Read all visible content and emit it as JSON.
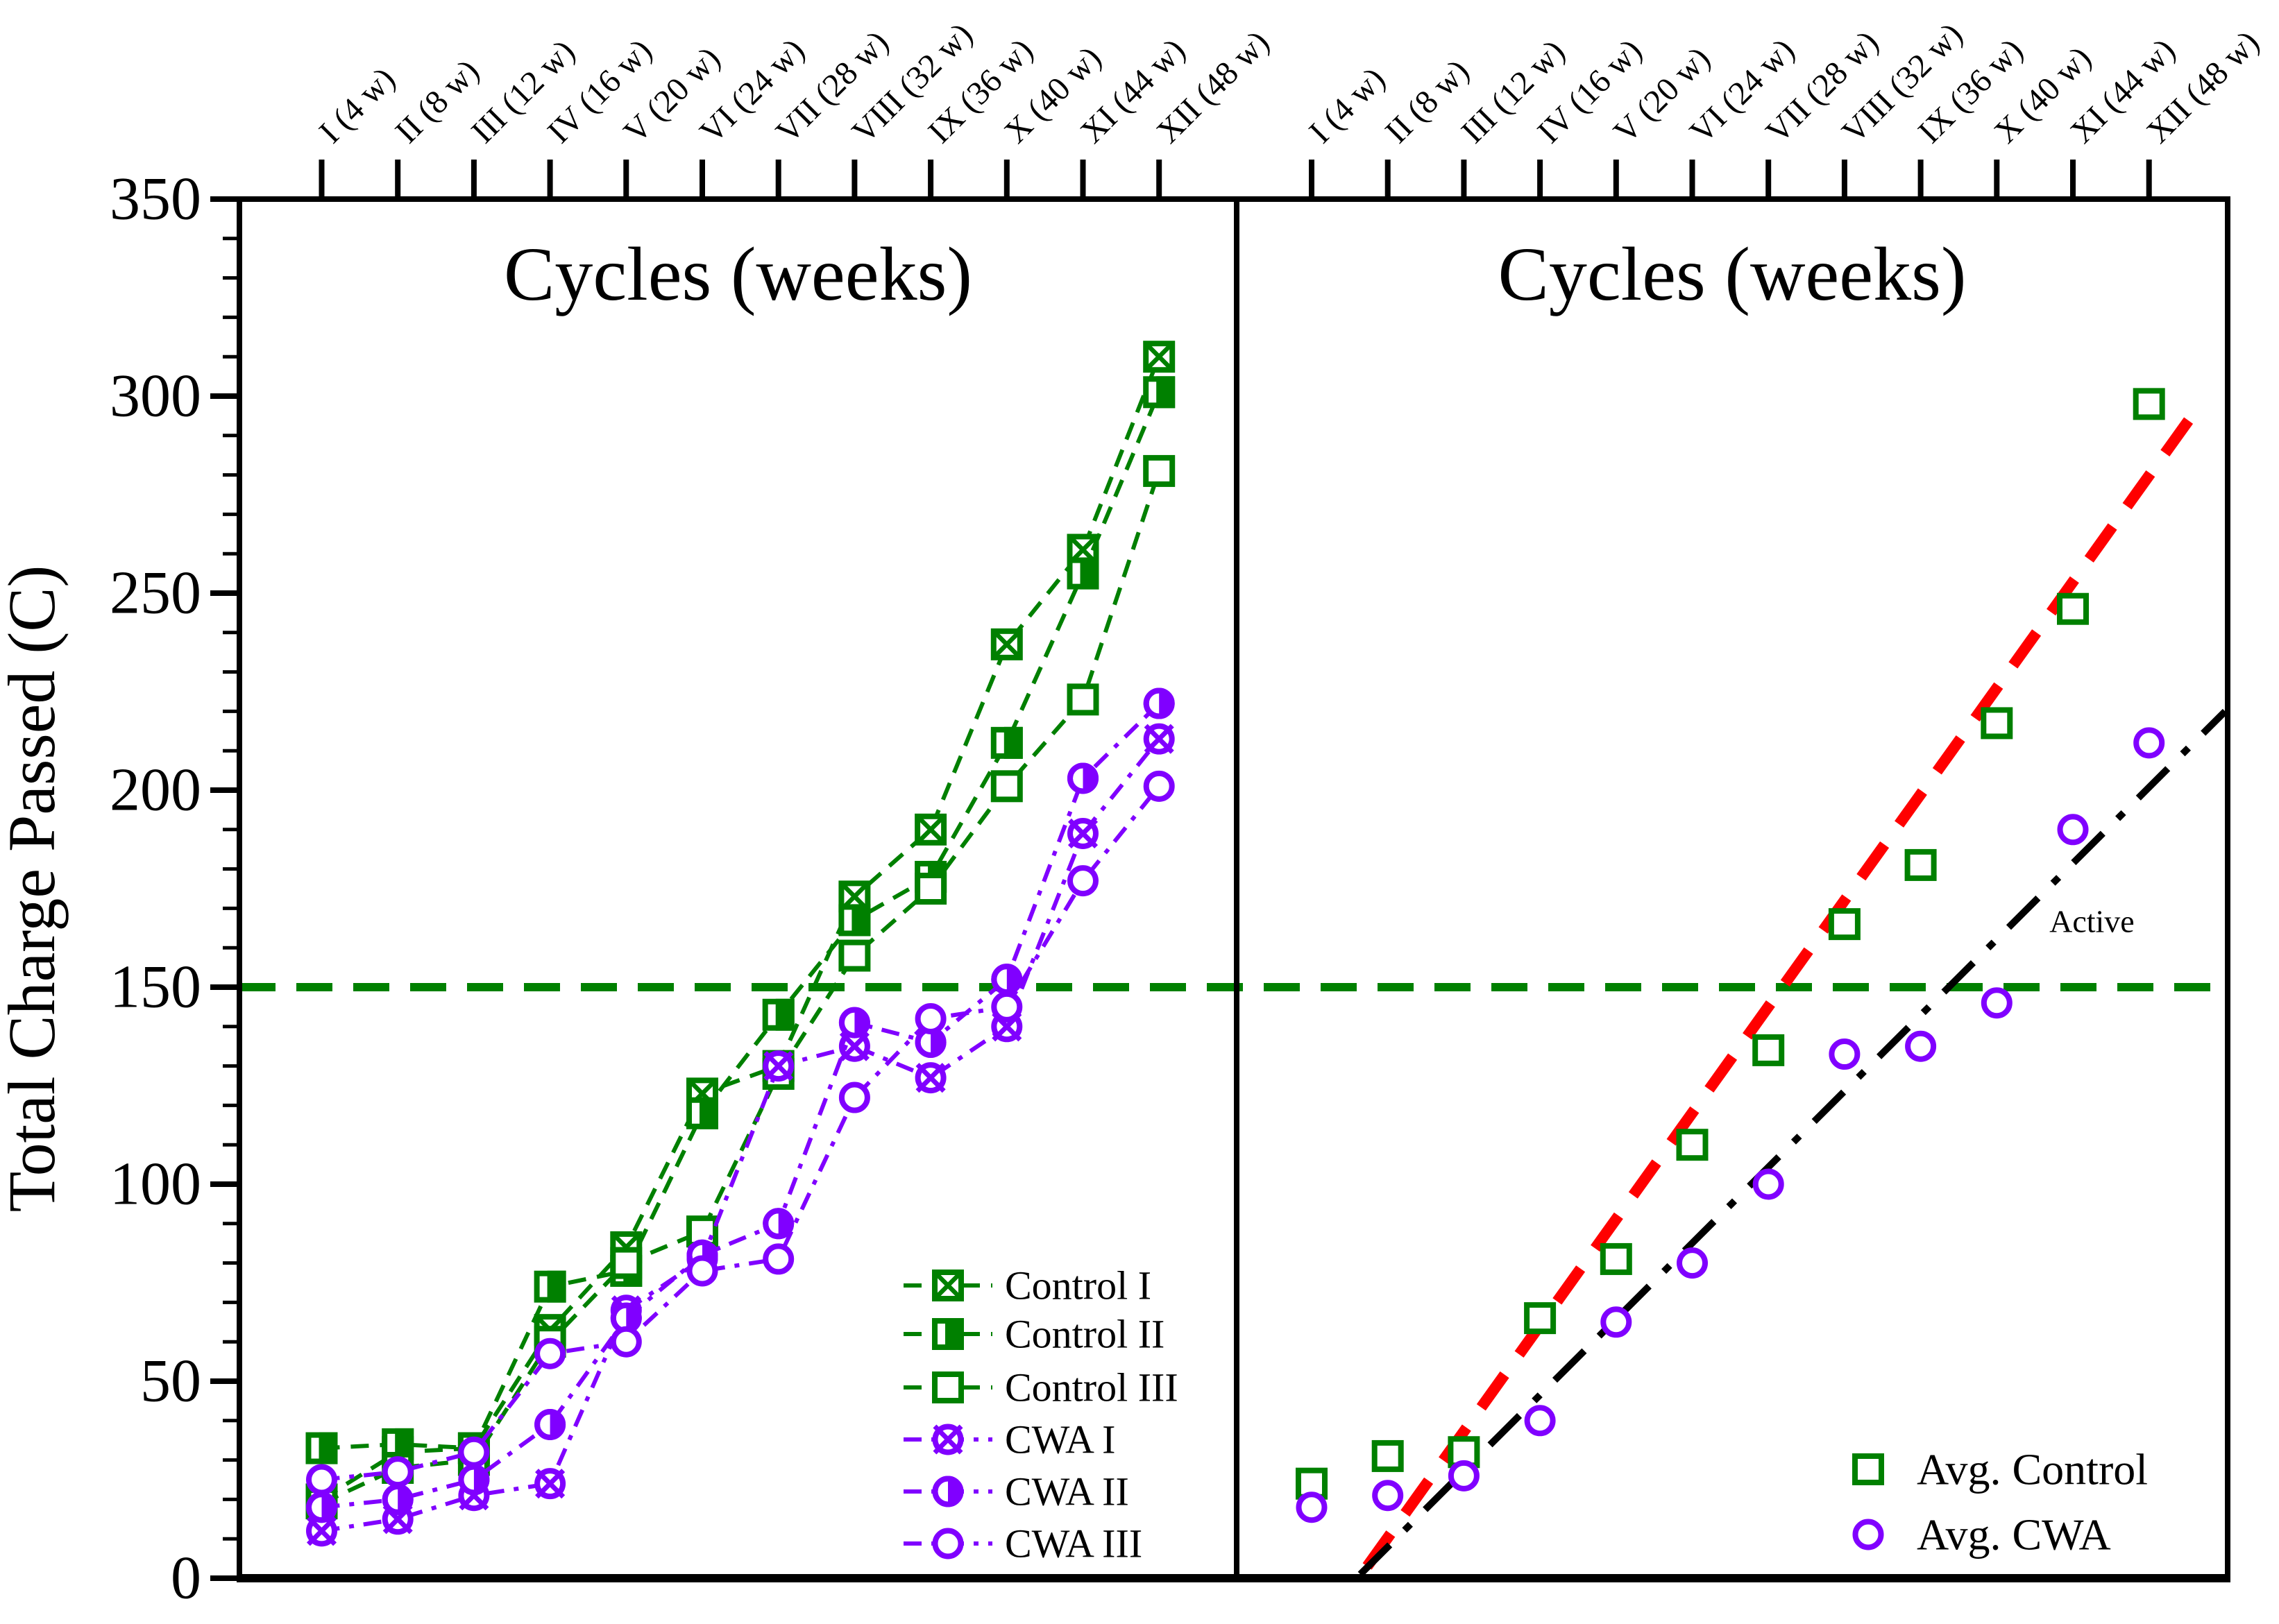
{
  "figure": {
    "type": "dual-panel scatter/line chart",
    "background": "#ffffff",
    "ylabel": "Total Charge Passed (C)"
  },
  "axes": {
    "y": {
      "label": "Total Charge Passed (C)",
      "min": 0,
      "max": 350,
      "major_ticks": [
        0,
        50,
        100,
        150,
        200,
        250,
        300,
        350
      ],
      "minor_tick_step": 10
    },
    "x_cycles": [
      "I (4 w)",
      "II (8 w)",
      "III (12 w)",
      "IV (16 w)",
      "V (20 w)",
      "VI (24 w)",
      "VII (28 w)",
      "VIII (32 w)",
      "IX (36 w)",
      "X (40 w)",
      "XI (44 w)",
      "XII (48 w)"
    ]
  },
  "colors": {
    "control_green": "#008000",
    "cwa_purple": "#8000FF",
    "trend_red": "#FF0000",
    "trend_black": "#000000",
    "threshold_green": "#008000",
    "axis_black": "#000000"
  },
  "threshold": {
    "value": 150,
    "color": "#008000",
    "style": "dashed"
  },
  "annotations": {
    "active_label": "Active"
  },
  "legend_left": {
    "items": [
      {
        "label": "Control I",
        "marker": "square-x",
        "color": "#008000",
        "line": "dashed"
      },
      {
        "label": "Control II",
        "marker": "square-half",
        "color": "#008000",
        "line": "dashed"
      },
      {
        "label": "Control III",
        "marker": "square-open",
        "color": "#008000",
        "line": "dashed"
      },
      {
        "label": "CWA I",
        "marker": "circle-x",
        "color": "#8000FF",
        "line": "dash-dot"
      },
      {
        "label": "CWA II",
        "marker": "circle-half",
        "color": "#8000FF",
        "line": "dash-dot"
      },
      {
        "label": "CWA III",
        "marker": "circle-open",
        "color": "#8000FF",
        "line": "dash-dot"
      }
    ]
  },
  "legend_right": {
    "items": [
      {
        "label": "Avg. Control",
        "marker": "square-open",
        "color": "#008000"
      },
      {
        "label": "Avg. CWA",
        "marker": "circle-open",
        "color": "#8000FF"
      }
    ]
  },
  "chart_data": [
    {
      "type": "line",
      "panel": "left",
      "title": "Cycles (weeks)",
      "xlabel": "Cycles (weeks)",
      "ylabel": "Total Charge Passed (C)",
      "ylim": [
        0,
        350
      ],
      "grid": false,
      "legend_position": "lower-right-inside",
      "threshold_y": 150,
      "categories": [
        "I (4 w)",
        "II (8 w)",
        "III (12 w)",
        "IV (16 w)",
        "V (20 w)",
        "VI (24 w)",
        "VII (28 w)",
        "VIII (32 w)",
        "IX (36 w)",
        "X (40 w)",
        "XI (44 w)",
        "XII (48 w)"
      ],
      "series": [
        {
          "name": "Control I",
          "marker": "square-x",
          "line": "dashed",
          "color": "#008000",
          "values": [
            20,
            32,
            33,
            63,
            84,
            123,
            130,
            173,
            190,
            237,
            261,
            310
          ]
        },
        {
          "name": "Control II",
          "marker": "square-half",
          "line": "dashed",
          "color": "#008000",
          "values": [
            33,
            34,
            33,
            74,
            78,
            118,
            143,
            167,
            178,
            212,
            255,
            301
          ]
        },
        {
          "name": "Control III",
          "marker": "square-open",
          "line": "dashed",
          "color": "#008000",
          "values": [
            19,
            28,
            30,
            60,
            80,
            88,
            128,
            158,
            175,
            201,
            223,
            281
          ]
        },
        {
          "name": "CWA I",
          "marker": "circle-x",
          "line": "dash-dot",
          "color": "#8000FF",
          "values": [
            12,
            15,
            21,
            24,
            68,
            81,
            130,
            135,
            127,
            140,
            189,
            213
          ]
        },
        {
          "name": "CWA II",
          "marker": "circle-half",
          "line": "dash-dot",
          "color": "#8000FF",
          "values": [
            18,
            20,
            25,
            39,
            66,
            82,
            90,
            141,
            136,
            152,
            203,
            222
          ]
        },
        {
          "name": "CWA III",
          "marker": "circle-open",
          "line": "dash-dot",
          "color": "#8000FF",
          "values": [
            25,
            27,
            32,
            57,
            60,
            78,
            81,
            122,
            142,
            145,
            177,
            201
          ]
        }
      ]
    },
    {
      "type": "scatter",
      "panel": "right",
      "title": "Cycles (weeks)",
      "xlabel": "Cycles (weeks)",
      "ylabel": "Total Charge Passed (C)",
      "ylim": [
        0,
        350
      ],
      "grid": false,
      "legend_position": "lower-right-inside",
      "threshold_y": 150,
      "categories": [
        "I (4 w)",
        "II (8 w)",
        "III (12 w)",
        "IV (16 w)",
        "V (20 w)",
        "VI (24 w)",
        "VII (28 w)",
        "VIII (32 w)",
        "IX (36 w)",
        "X (40 w)",
        "XI (44 w)",
        "XII (48 w)"
      ],
      "series": [
        {
          "name": "Avg. Control",
          "marker": "square-open",
          "color": "#008000",
          "values": [
            24,
            31,
            32,
            66,
            81,
            110,
            134,
            166,
            181,
            217,
            246,
            298
          ]
        },
        {
          "name": "Avg. CWA",
          "marker": "circle-open",
          "color": "#8000FF",
          "values": [
            18,
            21,
            26,
            40,
            65,
            80,
            100,
            133,
            135,
            146,
            190,
            212
          ]
        }
      ],
      "trend_lines": [
        {
          "name": "control-trend",
          "color": "#FF0000",
          "style": "dashed",
          "label": "",
          "start": {
            "cycle": 1.73,
            "value": 3
          },
          "end": {
            "cycle": 12.6,
            "value": 296
          }
        },
        {
          "name": "cwa-trend",
          "color": "#000000",
          "style": "dash-dot",
          "label": "Active",
          "start": {
            "cycle": 1.64,
            "value": 1
          },
          "end": {
            "cycle": 13.0,
            "value": 220
          }
        }
      ],
      "active_label_pos": {
        "cycle": 11.25,
        "value": 164
      }
    }
  ]
}
